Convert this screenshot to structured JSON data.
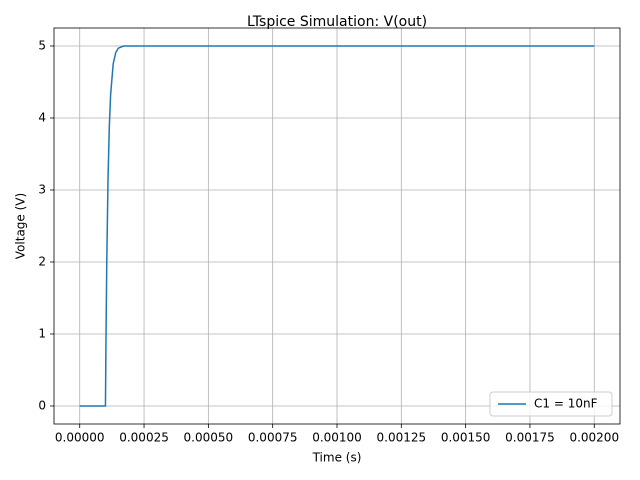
{
  "chart_data": {
    "type": "line",
    "title": "LTspice Simulation: V(out)",
    "x_label": "Time (s)",
    "y_label": "Voltage (V)",
    "x": [
      0,
      0.0001,
      0.000102,
      0.000105,
      0.00011,
      0.000115,
      0.00012,
      0.00013,
      0.00014,
      0.00015,
      0.00017,
      0.0002,
      0.002
    ],
    "series": [
      {
        "name": "C1 = 10nF",
        "color": "#1f77b4",
        "values": [
          0,
          0,
          0.91,
          1.97,
          3.16,
          3.88,
          4.32,
          4.75,
          4.91,
          4.97,
          5.0,
          5.0,
          5.0
        ]
      }
    ],
    "xlim": [
      -0.0001,
      0.0021
    ],
    "ylim": [
      -0.25,
      5.25
    ],
    "xticks": [
      {
        "value": 0,
        "label": "0.00000"
      },
      {
        "value": 0.00025,
        "label": "0.00025"
      },
      {
        "value": 0.0005,
        "label": "0.00050"
      },
      {
        "value": 0.00075,
        "label": "0.00075"
      },
      {
        "value": 0.001,
        "label": "0.00100"
      },
      {
        "value": 0.00125,
        "label": "0.00125"
      },
      {
        "value": 0.0015,
        "label": "0.00150"
      },
      {
        "value": 0.00175,
        "label": "0.00175"
      },
      {
        "value": 0.002,
        "label": "0.00200"
      }
    ],
    "yticks": [
      0,
      1,
      2,
      3,
      4,
      5
    ],
    "grid": true,
    "legend": "lower right"
  }
}
